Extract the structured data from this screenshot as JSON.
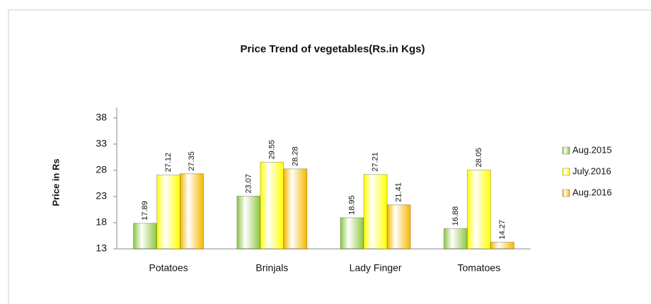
{
  "chart_data": {
    "type": "bar",
    "title": "Price Trend of vegetables(Rs.in Kgs)",
    "y_label": "Price in Rs",
    "categories": [
      "Potatoes",
      "Brinjals",
      "Lady Finger",
      "Tomatoes"
    ],
    "series": [
      {
        "name": "Aug.2015",
        "color": "#8cc63f",
        "values": [
          17.89,
          23.07,
          18.95,
          16.88
        ]
      },
      {
        "name": "July.2016",
        "color": "#ffff00",
        "values": [
          27.12,
          29.55,
          27.21,
          28.05
        ]
      },
      {
        "name": "Aug.2016",
        "color": "#f5b800",
        "values": [
          27.35,
          28.28,
          21.41,
          14.27
        ]
      }
    ],
    "ylim": [
      13,
      40
    ],
    "yticks": [
      13,
      18,
      23,
      28,
      33,
      38
    ],
    "grid": false,
    "legend": "right"
  }
}
